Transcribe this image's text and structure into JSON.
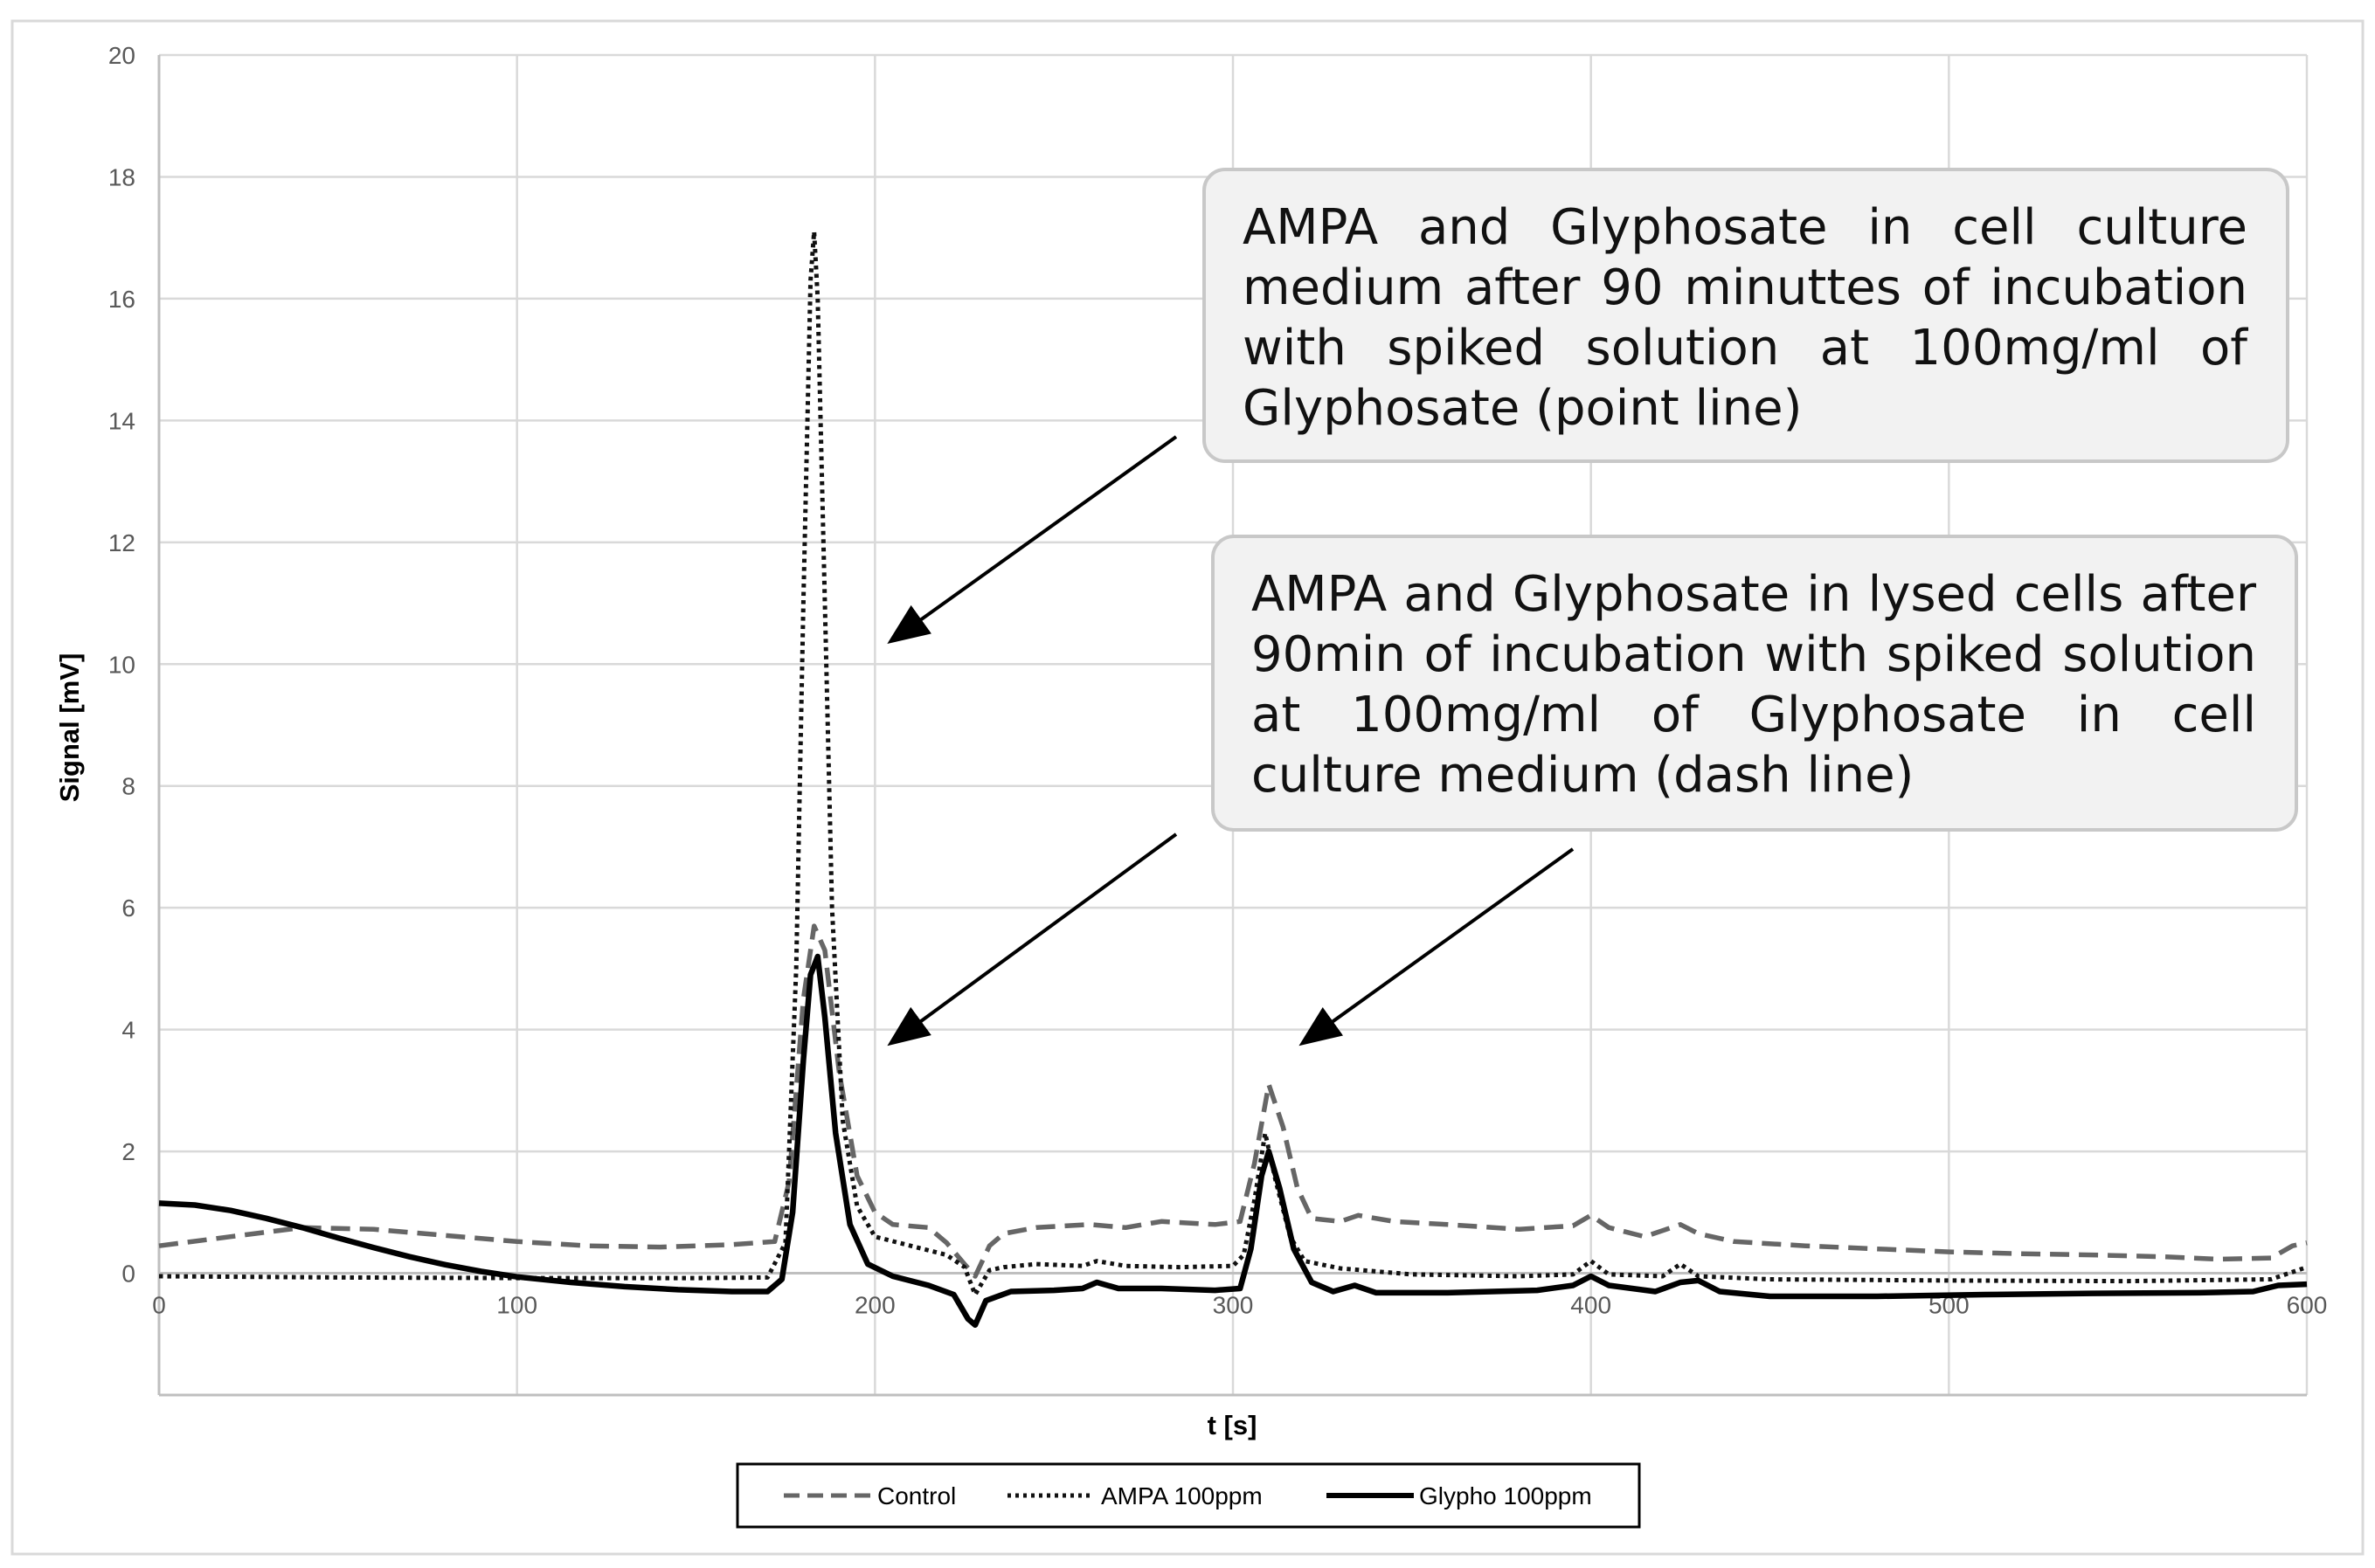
{
  "chart_data": {
    "type": "line",
    "xlabel": "t [s]",
    "ylabel": "Signal [mV]",
    "xlim": [
      0,
      600
    ],
    "ylim": [
      -2,
      20
    ],
    "x_ticks": [
      0,
      100,
      200,
      300,
      400,
      500,
      600
    ],
    "y_ticks": [
      0,
      2,
      4,
      6,
      8,
      10,
      12,
      14,
      16,
      18,
      20
    ],
    "grid": true,
    "legend_position": "bottom",
    "series": [
      {
        "name": "Control",
        "style": "dashed",
        "color": "#666666",
        "points": [
          [
            0,
            0.45
          ],
          [
            20,
            0.6
          ],
          [
            40,
            0.75
          ],
          [
            60,
            0.72
          ],
          [
            80,
            0.62
          ],
          [
            100,
            0.52
          ],
          [
            120,
            0.45
          ],
          [
            140,
            0.43
          ],
          [
            160,
            0.47
          ],
          [
            172,
            0.52
          ],
          [
            176,
            1.5
          ],
          [
            180,
            4.5
          ],
          [
            183,
            5.7
          ],
          [
            186,
            5.3
          ],
          [
            190,
            3.3
          ],
          [
            195,
            1.6
          ],
          [
            200,
            1.0
          ],
          [
            205,
            0.8
          ],
          [
            215,
            0.75
          ],
          [
            220,
            0.5
          ],
          [
            225,
            0.15
          ],
          [
            228,
            -0.05
          ],
          [
            232,
            0.45
          ],
          [
            236,
            0.65
          ],
          [
            245,
            0.75
          ],
          [
            260,
            0.8
          ],
          [
            270,
            0.75
          ],
          [
            280,
            0.85
          ],
          [
            295,
            0.8
          ],
          [
            302,
            0.85
          ],
          [
            306,
            1.8
          ],
          [
            310,
            3.1
          ],
          [
            314,
            2.4
          ],
          [
            318,
            1.4
          ],
          [
            322,
            0.9
          ],
          [
            330,
            0.85
          ],
          [
            335,
            0.95
          ],
          [
            345,
            0.85
          ],
          [
            360,
            0.8
          ],
          [
            380,
            0.72
          ],
          [
            395,
            0.78
          ],
          [
            400,
            0.95
          ],
          [
            405,
            0.75
          ],
          [
            415,
            0.6
          ],
          [
            425,
            0.8
          ],
          [
            430,
            0.65
          ],
          [
            440,
            0.52
          ],
          [
            460,
            0.45
          ],
          [
            480,
            0.4
          ],
          [
            500,
            0.35
          ],
          [
            520,
            0.32
          ],
          [
            540,
            0.3
          ],
          [
            560,
            0.27
          ],
          [
            575,
            0.23
          ],
          [
            590,
            0.25
          ],
          [
            596,
            0.45
          ],
          [
            600,
            0.5
          ]
        ]
      },
      {
        "name": "AMPA 100ppm",
        "style": "dotted",
        "color": "#111111",
        "points": [
          [
            0,
            -0.05
          ],
          [
            50,
            -0.07
          ],
          [
            100,
            -0.08
          ],
          [
            150,
            -0.08
          ],
          [
            170,
            -0.07
          ],
          [
            175,
            0.5
          ],
          [
            178,
            5
          ],
          [
            180,
            11
          ],
          [
            182,
            16.3
          ],
          [
            183,
            17.1
          ],
          [
            184,
            16
          ],
          [
            186,
            11
          ],
          [
            188,
            6
          ],
          [
            191,
            2.5
          ],
          [
            195,
            1.1
          ],
          [
            200,
            0.6
          ],
          [
            210,
            0.45
          ],
          [
            220,
            0.3
          ],
          [
            225,
            0.1
          ],
          [
            228,
            -0.35
          ],
          [
            232,
            0.05
          ],
          [
            236,
            0.1
          ],
          [
            245,
            0.15
          ],
          [
            258,
            0.12
          ],
          [
            262,
            0.2
          ],
          [
            270,
            0.12
          ],
          [
            285,
            0.1
          ],
          [
            300,
            0.12
          ],
          [
            303,
            0.3
          ],
          [
            306,
            1.2
          ],
          [
            309,
            2.3
          ],
          [
            312,
            1.5
          ],
          [
            316,
            0.6
          ],
          [
            320,
            0.2
          ],
          [
            330,
            0.08
          ],
          [
            350,
            -0.02
          ],
          [
            380,
            -0.05
          ],
          [
            395,
            -0.02
          ],
          [
            400,
            0.2
          ],
          [
            405,
            -0.02
          ],
          [
            420,
            -0.05
          ],
          [
            425,
            0.15
          ],
          [
            430,
            -0.05
          ],
          [
            450,
            -0.1
          ],
          [
            500,
            -0.12
          ],
          [
            550,
            -0.13
          ],
          [
            590,
            -0.1
          ],
          [
            600,
            0.1
          ]
        ]
      },
      {
        "name": "Glypho 100ppm",
        "style": "solid",
        "color": "#000000",
        "points": [
          [
            0,
            1.15
          ],
          [
            10,
            1.12
          ],
          [
            20,
            1.03
          ],
          [
            30,
            0.9
          ],
          [
            40,
            0.75
          ],
          [
            50,
            0.58
          ],
          [
            60,
            0.42
          ],
          [
            70,
            0.27
          ],
          [
            80,
            0.14
          ],
          [
            90,
            0.03
          ],
          [
            100,
            -0.06
          ],
          [
            115,
            -0.15
          ],
          [
            130,
            -0.22
          ],
          [
            145,
            -0.27
          ],
          [
            160,
            -0.3
          ],
          [
            170,
            -0.3
          ],
          [
            174,
            -0.1
          ],
          [
            177,
            1
          ],
          [
            180,
            3.5
          ],
          [
            182,
            4.9
          ],
          [
            184,
            5.2
          ],
          [
            186,
            4.2
          ],
          [
            189,
            2.3
          ],
          [
            193,
            0.8
          ],
          [
            198,
            0.15
          ],
          [
            205,
            -0.05
          ],
          [
            215,
            -0.2
          ],
          [
            222,
            -0.35
          ],
          [
            226,
            -0.75
          ],
          [
            228,
            -0.85
          ],
          [
            231,
            -0.45
          ],
          [
            238,
            -0.3
          ],
          [
            250,
            -0.28
          ],
          [
            258,
            -0.25
          ],
          [
            262,
            -0.15
          ],
          [
            268,
            -0.25
          ],
          [
            280,
            -0.25
          ],
          [
            295,
            -0.28
          ],
          [
            302,
            -0.25
          ],
          [
            305,
            0.4
          ],
          [
            308,
            1.6
          ],
          [
            310,
            2.0
          ],
          [
            313,
            1.4
          ],
          [
            317,
            0.4
          ],
          [
            322,
            -0.15
          ],
          [
            328,
            -0.3
          ],
          [
            334,
            -0.2
          ],
          [
            340,
            -0.32
          ],
          [
            360,
            -0.32
          ],
          [
            385,
            -0.28
          ],
          [
            395,
            -0.2
          ],
          [
            400,
            -0.05
          ],
          [
            405,
            -0.2
          ],
          [
            418,
            -0.3
          ],
          [
            425,
            -0.15
          ],
          [
            430,
            -0.12
          ],
          [
            436,
            -0.3
          ],
          [
            450,
            -0.38
          ],
          [
            480,
            -0.38
          ],
          [
            510,
            -0.35
          ],
          [
            540,
            -0.33
          ],
          [
            570,
            -0.32
          ],
          [
            585,
            -0.3
          ],
          [
            592,
            -0.2
          ],
          [
            600,
            -0.18
          ]
        ]
      }
    ],
    "annotations": [
      {
        "text": "AMPA and Glyphosate in cell culture medium after 90 minuttes of incubation with spiked solution at 100mg/ml of Glyphosate (point line)",
        "arrow_target": [
          205,
          10.4
        ]
      },
      {
        "text": "AMPA and Glyphosate in lysed cells after 90min of incubation with spiked solution at 100mg/ml of Glyphosate in cell culture medium (dash line)",
        "arrow_targets": [
          [
            205,
            3.8
          ],
          [
            320,
            3.8
          ]
        ]
      }
    ]
  }
}
